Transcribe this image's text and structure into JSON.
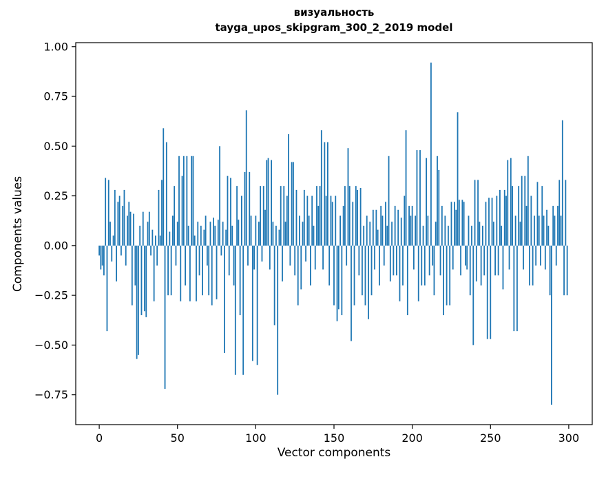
{
  "figure": {
    "title_line1": "визуальность",
    "title_line2": "tayga_upos_skipgram_300_2_2019 model",
    "xlabel": "Vector components",
    "ylabel": "Components values"
  },
  "chart_data": {
    "type": "bar",
    "title": "визуальность\ntayga_upos_skipgram_300_2_2019 model",
    "xlabel": "Vector components",
    "ylabel": "Components values",
    "bar_color": "#1f77b4",
    "grid": false,
    "legend": "none",
    "xlim": [
      -15,
      315
    ],
    "ylim": [
      -0.9,
      1.02
    ],
    "xticks": [
      0,
      50,
      100,
      150,
      200,
      250,
      300
    ],
    "xtick_labels": [
      "0",
      "50",
      "100",
      "150",
      "200",
      "250",
      "300"
    ],
    "yticks": [
      1.0,
      0.75,
      0.5,
      0.25,
      0.0,
      -0.25,
      -0.5,
      -0.75
    ],
    "ytick_labels": [
      "1.00",
      "0.75",
      "0.50",
      "0.25",
      "0.00",
      "−0.25",
      "−0.50",
      "−0.75"
    ],
    "x": [
      0,
      1,
      2,
      3,
      4,
      5,
      6,
      7,
      8,
      9,
      10,
      11,
      12,
      13,
      14,
      15,
      16,
      17,
      18,
      19,
      20,
      21,
      22,
      23,
      24,
      25,
      26,
      27,
      28,
      29,
      30,
      31,
      32,
      33,
      34,
      35,
      36,
      37,
      38,
      39,
      40,
      41,
      42,
      43,
      44,
      45,
      46,
      47,
      48,
      49,
      50,
      51,
      52,
      53,
      54,
      55,
      56,
      57,
      58,
      59,
      60,
      61,
      62,
      63,
      64,
      65,
      66,
      67,
      68,
      69,
      70,
      71,
      72,
      73,
      74,
      75,
      76,
      77,
      78,
      79,
      80,
      81,
      82,
      83,
      84,
      85,
      86,
      87,
      88,
      89,
      90,
      91,
      92,
      93,
      94,
      95,
      96,
      97,
      98,
      99,
      100,
      101,
      102,
      103,
      104,
      105,
      106,
      107,
      108,
      109,
      110,
      111,
      112,
      113,
      114,
      115,
      116,
      117,
      118,
      119,
      120,
      121,
      122,
      123,
      124,
      125,
      126,
      127,
      128,
      129,
      130,
      131,
      132,
      133,
      134,
      135,
      136,
      137,
      138,
      139,
      140,
      141,
      142,
      143,
      144,
      145,
      146,
      147,
      148,
      149,
      150,
      151,
      152,
      153,
      154,
      155,
      156,
      157,
      158,
      159,
      160,
      161,
      162,
      163,
      164,
      165,
      166,
      167,
      168,
      169,
      170,
      171,
      172,
      173,
      174,
      175,
      176,
      177,
      178,
      179,
      180,
      181,
      182,
      183,
      184,
      185,
      186,
      187,
      188,
      189,
      190,
      191,
      192,
      193,
      194,
      195,
      196,
      197,
      198,
      199,
      200,
      201,
      202,
      203,
      204,
      205,
      206,
      207,
      208,
      209,
      210,
      211,
      212,
      213,
      214,
      215,
      216,
      217,
      218,
      219,
      220,
      221,
      222,
      223,
      224,
      225,
      226,
      227,
      228,
      229,
      230,
      231,
      232,
      233,
      234,
      235,
      236,
      237,
      238,
      239,
      240,
      241,
      242,
      243,
      244,
      245,
      246,
      247,
      248,
      249,
      250,
      251,
      252,
      253,
      254,
      255,
      256,
      257,
      258,
      259,
      260,
      261,
      262,
      263,
      264,
      265,
      266,
      267,
      268,
      269,
      270,
      271,
      272,
      273,
      274,
      275,
      276,
      277,
      278,
      279,
      280,
      281,
      282,
      283,
      284,
      285,
      286,
      287,
      288,
      289,
      290,
      291,
      292,
      293,
      294,
      295,
      296,
      297,
      298,
      299
    ],
    "values": [
      -0.05,
      -0.12,
      -0.1,
      -0.15,
      0.34,
      -0.43,
      0.33,
      0.12,
      -0.08,
      0.05,
      0.28,
      -0.18,
      0.22,
      0.25,
      -0.05,
      0.2,
      0.28,
      -0.1,
      0.15,
      0.22,
      0.17,
      -0.3,
      0.16,
      -0.2,
      -0.57,
      -0.55,
      0.1,
      -0.35,
      0.17,
      -0.33,
      -0.36,
      0.12,
      0.17,
      -0.05,
      0.08,
      -0.28,
      0.05,
      -0.1,
      0.28,
      0.05,
      0.33,
      0.59,
      -0.72,
      0.52,
      -0.25,
      0.07,
      -0.25,
      0.15,
      0.3,
      -0.1,
      0.12,
      0.45,
      -0.28,
      0.35,
      0.45,
      -0.2,
      0.45,
      0.1,
      -0.28,
      0.45,
      0.45,
      0.05,
      -0.28,
      0.12,
      -0.15,
      0.1,
      -0.25,
      0.08,
      0.15,
      -0.1,
      -0.25,
      0.12,
      -0.3,
      0.14,
      0.1,
      -0.27,
      0.13,
      0.5,
      -0.05,
      0.12,
      -0.54,
      0.08,
      0.35,
      -0.15,
      0.34,
      0.1,
      -0.2,
      -0.65,
      0.3,
      0.13,
      -0.35,
      0.25,
      -0.65,
      0.37,
      0.68,
      -0.1,
      0.37,
      0.15,
      -0.58,
      -0.12,
      0.15,
      -0.6,
      0.12,
      0.3,
      -0.08,
      0.3,
      0.18,
      0.43,
      0.44,
      -0.12,
      0.43,
      0.12,
      -0.4,
      0.1,
      -0.75,
      0.08,
      0.3,
      -0.18,
      0.3,
      0.12,
      0.25,
      0.56,
      -0.1,
      0.42,
      0.42,
      -0.15,
      0.28,
      -0.3,
      0.15,
      -0.22,
      0.12,
      0.28,
      -0.08,
      0.25,
      0.15,
      -0.2,
      0.25,
      0.1,
      -0.12,
      0.3,
      0.2,
      0.3,
      0.58,
      -0.12,
      0.52,
      0.25,
      0.52,
      -0.2,
      0.25,
      0.22,
      -0.3,
      0.25,
      -0.38,
      -0.32,
      0.15,
      -0.35,
      0.2,
      0.3,
      -0.1,
      0.49,
      0.3,
      -0.48,
      0.22,
      -0.3,
      0.3,
      0.28,
      -0.15,
      0.29,
      -0.25,
      0.1,
      -0.3,
      0.15,
      -0.37,
      0.12,
      -0.25,
      0.18,
      -0.12,
      0.18,
      0.08,
      -0.2,
      0.2,
      0.15,
      -0.1,
      0.22,
      0.1,
      0.45,
      -0.18,
      0.12,
      -0.15,
      0.2,
      -0.15,
      0.18,
      -0.28,
      0.14,
      -0.2,
      0.25,
      0.58,
      -0.35,
      0.2,
      0.15,
      0.2,
      -0.12,
      0.15,
      0.48,
      -0.28,
      0.48,
      -0.2,
      0.1,
      -0.2,
      0.44,
      0.15,
      -0.15,
      0.92,
      -0.1,
      -0.25,
      0.12,
      0.45,
      0.38,
      -0.15,
      0.2,
      -0.35,
      0.15,
      -0.3,
      0.1,
      -0.3,
      0.22,
      -0.12,
      0.22,
      0.18,
      0.67,
      0.23,
      -0.15,
      0.23,
      0.22,
      -0.1,
      -0.12,
      0.15,
      -0.25,
      0.1,
      -0.5,
      0.33,
      -0.18,
      0.33,
      0.12,
      -0.2,
      0.1,
      -0.15,
      0.22,
      -0.47,
      0.24,
      -0.47,
      0.24,
      0.12,
      -0.15,
      0.25,
      -0.15,
      0.28,
      0.1,
      -0.22,
      0.28,
      0.25,
      0.43,
      -0.12,
      0.44,
      0.3,
      -0.43,
      0.15,
      -0.43,
      0.3,
      0.12,
      0.35,
      -0.12,
      0.35,
      0.2,
      0.45,
      -0.2,
      0.25,
      -0.2,
      0.15,
      -0.1,
      0.32,
      0.15,
      -0.1,
      0.3,
      0.15,
      -0.12,
      0.18,
      0.1,
      -0.25,
      -0.8,
      0.2,
      0.15,
      -0.1,
      0.2,
      0.33,
      0.15,
      0.63,
      -0.25,
      0.33,
      -0.25
    ]
  }
}
